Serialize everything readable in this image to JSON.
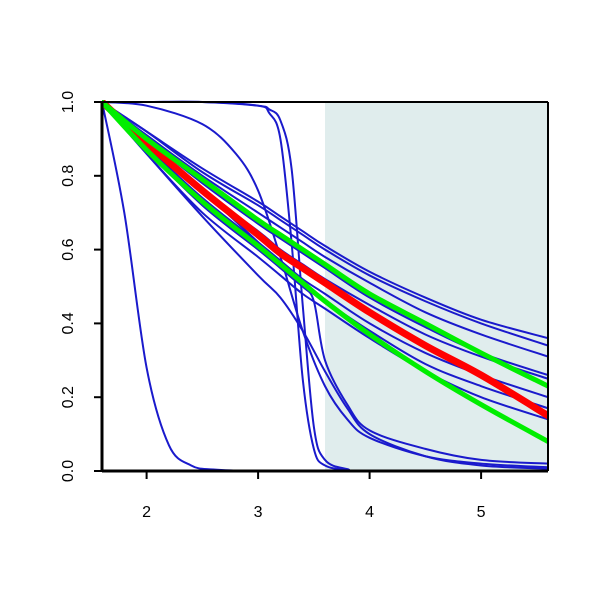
{
  "chart_data": {
    "type": "line",
    "title": "",
    "xlabel": "",
    "ylabel": "",
    "xlim": [
      1.6,
      5.6
    ],
    "ylim": [
      0.0,
      1.0
    ],
    "xticks": [
      2,
      3,
      4,
      5
    ],
    "yticks": [
      0.0,
      0.2,
      0.4,
      0.6,
      0.8,
      1.0
    ],
    "xtick_labels": [
      "2",
      "3",
      "4",
      "5"
    ],
    "ytick_labels": [
      "0.0",
      "0.2",
      "0.4",
      "0.6",
      "0.8",
      "1.0"
    ],
    "shaded_region": {
      "x_from": 3.6,
      "x_to": 5.6,
      "color": "#e0eded"
    },
    "grid": false,
    "legend": "none",
    "colors": {
      "blue": "#1a1acc",
      "red": "#ff0000",
      "green": "#00ee00"
    },
    "series": [
      {
        "color": "blue",
        "x": [
          1.6,
          2.0,
          2.5,
          3.0,
          3.2,
          3.4,
          3.6,
          4.0,
          4.5,
          5.0,
          5.6
        ],
        "values": [
          1.0,
          0.92,
          0.82,
          0.73,
          0.69,
          0.65,
          0.61,
          0.54,
          0.47,
          0.41,
          0.36
        ]
      },
      {
        "color": "blue",
        "x": [
          1.6,
          2.0,
          2.5,
          3.0,
          3.2,
          3.4,
          3.6,
          4.0,
          4.5,
          5.0,
          5.6
        ],
        "values": [
          1.0,
          0.92,
          0.81,
          0.72,
          0.68,
          0.64,
          0.6,
          0.53,
          0.46,
          0.4,
          0.34
        ]
      },
      {
        "color": "blue",
        "x": [
          1.6,
          2.0,
          2.5,
          3.0,
          3.2,
          3.4,
          3.6,
          4.0,
          4.5,
          5.0,
          5.6
        ],
        "values": [
          1.0,
          0.91,
          0.8,
          0.7,
          0.66,
          0.62,
          0.58,
          0.51,
          0.43,
          0.37,
          0.31
        ]
      },
      {
        "color": "blue",
        "x": [
          1.6,
          2.0,
          2.5,
          3.0,
          3.2,
          3.4,
          3.6,
          4.0,
          4.5,
          5.0,
          5.6
        ],
        "values": [
          1.0,
          0.9,
          0.78,
          0.67,
          0.63,
          0.59,
          0.55,
          0.47,
          0.39,
          0.32,
          0.26
        ]
      },
      {
        "color": "blue",
        "x": [
          1.6,
          2.0,
          2.5,
          3.0,
          3.2,
          3.4,
          3.6,
          4.0,
          4.5,
          5.0,
          5.6
        ],
        "values": [
          1.0,
          0.89,
          0.76,
          0.65,
          0.6,
          0.56,
          0.52,
          0.45,
          0.37,
          0.31,
          0.25
        ]
      },
      {
        "color": "blue",
        "x": [
          1.6,
          2.0,
          2.5,
          3.0,
          3.2,
          3.4,
          3.6,
          4.0,
          4.5,
          5.0,
          5.6
        ],
        "values": [
          1.0,
          0.88,
          0.74,
          0.62,
          0.57,
          0.52,
          0.48,
          0.4,
          0.32,
          0.26,
          0.2
        ]
      },
      {
        "color": "blue",
        "x": [
          1.6,
          2.0,
          2.5,
          3.0,
          3.2,
          3.4,
          3.6,
          4.0,
          4.5,
          5.0,
          5.6
        ],
        "values": [
          1.0,
          0.87,
          0.72,
          0.6,
          0.55,
          0.5,
          0.46,
          0.38,
          0.29,
          0.23,
          0.17
        ]
      },
      {
        "color": "blue",
        "x": [
          1.6,
          2.0,
          2.5,
          3.0,
          3.2,
          3.4,
          3.6,
          4.0,
          4.5,
          5.0,
          5.6
        ],
        "values": [
          1.0,
          0.86,
          0.7,
          0.58,
          0.53,
          0.48,
          0.44,
          0.36,
          0.27,
          0.2,
          0.14
        ]
      },
      {
        "color": "blue",
        "x": [
          1.6,
          1.8,
          2.0,
          2.2,
          2.4,
          2.6,
          3.0,
          4.0,
          5.6
        ],
        "values": [
          1.0,
          0.7,
          0.28,
          0.07,
          0.015,
          0.004,
          0.0,
          0.0,
          0.0
        ]
      },
      {
        "color": "blue",
        "x": [
          1.6,
          2.0,
          2.5,
          3.0,
          3.1,
          3.2,
          3.3,
          3.4,
          3.5,
          3.6,
          3.8,
          4.0,
          5.6
        ],
        "values": [
          1.0,
          1.0,
          1.0,
          0.99,
          0.97,
          0.9,
          0.62,
          0.25,
          0.06,
          0.015,
          0.003,
          0.0,
          0.0
        ]
      },
      {
        "color": "blue",
        "x": [
          1.6,
          2.0,
          2.5,
          3.0,
          3.1,
          3.2,
          3.3,
          3.4,
          3.5,
          3.6,
          3.8,
          4.0,
          5.6
        ],
        "values": [
          1.0,
          1.0,
          1.0,
          0.99,
          0.98,
          0.95,
          0.82,
          0.45,
          0.12,
          0.03,
          0.005,
          0.0,
          0.0
        ]
      },
      {
        "color": "blue",
        "x": [
          1.6,
          2.0,
          2.5,
          2.8,
          3.0,
          3.2,
          3.4,
          3.6,
          3.8,
          4.0,
          4.5,
          5.0,
          5.6
        ],
        "values": [
          1.0,
          0.99,
          0.94,
          0.86,
          0.76,
          0.58,
          0.38,
          0.23,
          0.14,
          0.09,
          0.04,
          0.02,
          0.01
        ]
      },
      {
        "color": "blue",
        "x": [
          1.6,
          2.0,
          2.5,
          3.0,
          3.2,
          3.4,
          3.5,
          3.6,
          3.8,
          4.0,
          4.5,
          5.0,
          5.6
        ],
        "values": [
          1.0,
          0.9,
          0.76,
          0.62,
          0.56,
          0.5,
          0.46,
          0.3,
          0.18,
          0.11,
          0.06,
          0.03,
          0.02
        ]
      },
      {
        "color": "blue",
        "x": [
          1.6,
          2.0,
          2.5,
          3.0,
          3.2,
          3.4,
          3.6,
          3.8,
          4.0,
          4.5,
          5.0,
          5.6
        ],
        "values": [
          1.0,
          0.86,
          0.69,
          0.53,
          0.47,
          0.38,
          0.27,
          0.17,
          0.1,
          0.04,
          0.015,
          0.006
        ]
      },
      {
        "color": "red",
        "x": [
          1.6,
          2.0,
          2.5,
          3.0,
          3.2,
          3.4,
          3.6,
          4.0,
          4.5,
          5.0,
          5.6
        ],
        "values": [
          1.0,
          0.89,
          0.76,
          0.64,
          0.59,
          0.55,
          0.51,
          0.43,
          0.34,
          0.26,
          0.15
        ]
      },
      {
        "color": "green",
        "x": [
          1.6,
          2.0,
          2.5,
          3.0,
          3.2,
          3.4,
          3.6,
          4.0,
          4.5,
          5.0,
          5.6
        ],
        "values": [
          1.0,
          0.9,
          0.79,
          0.68,
          0.64,
          0.6,
          0.56,
          0.48,
          0.4,
          0.32,
          0.23
        ]
      },
      {
        "color": "green",
        "x": [
          1.6,
          2.0,
          2.5,
          3.0,
          3.2,
          3.4,
          3.6,
          4.0,
          4.5,
          5.0,
          5.6
        ],
        "values": [
          1.0,
          0.87,
          0.73,
          0.61,
          0.56,
          0.51,
          0.46,
          0.37,
          0.27,
          0.18,
          0.08
        ]
      }
    ]
  }
}
